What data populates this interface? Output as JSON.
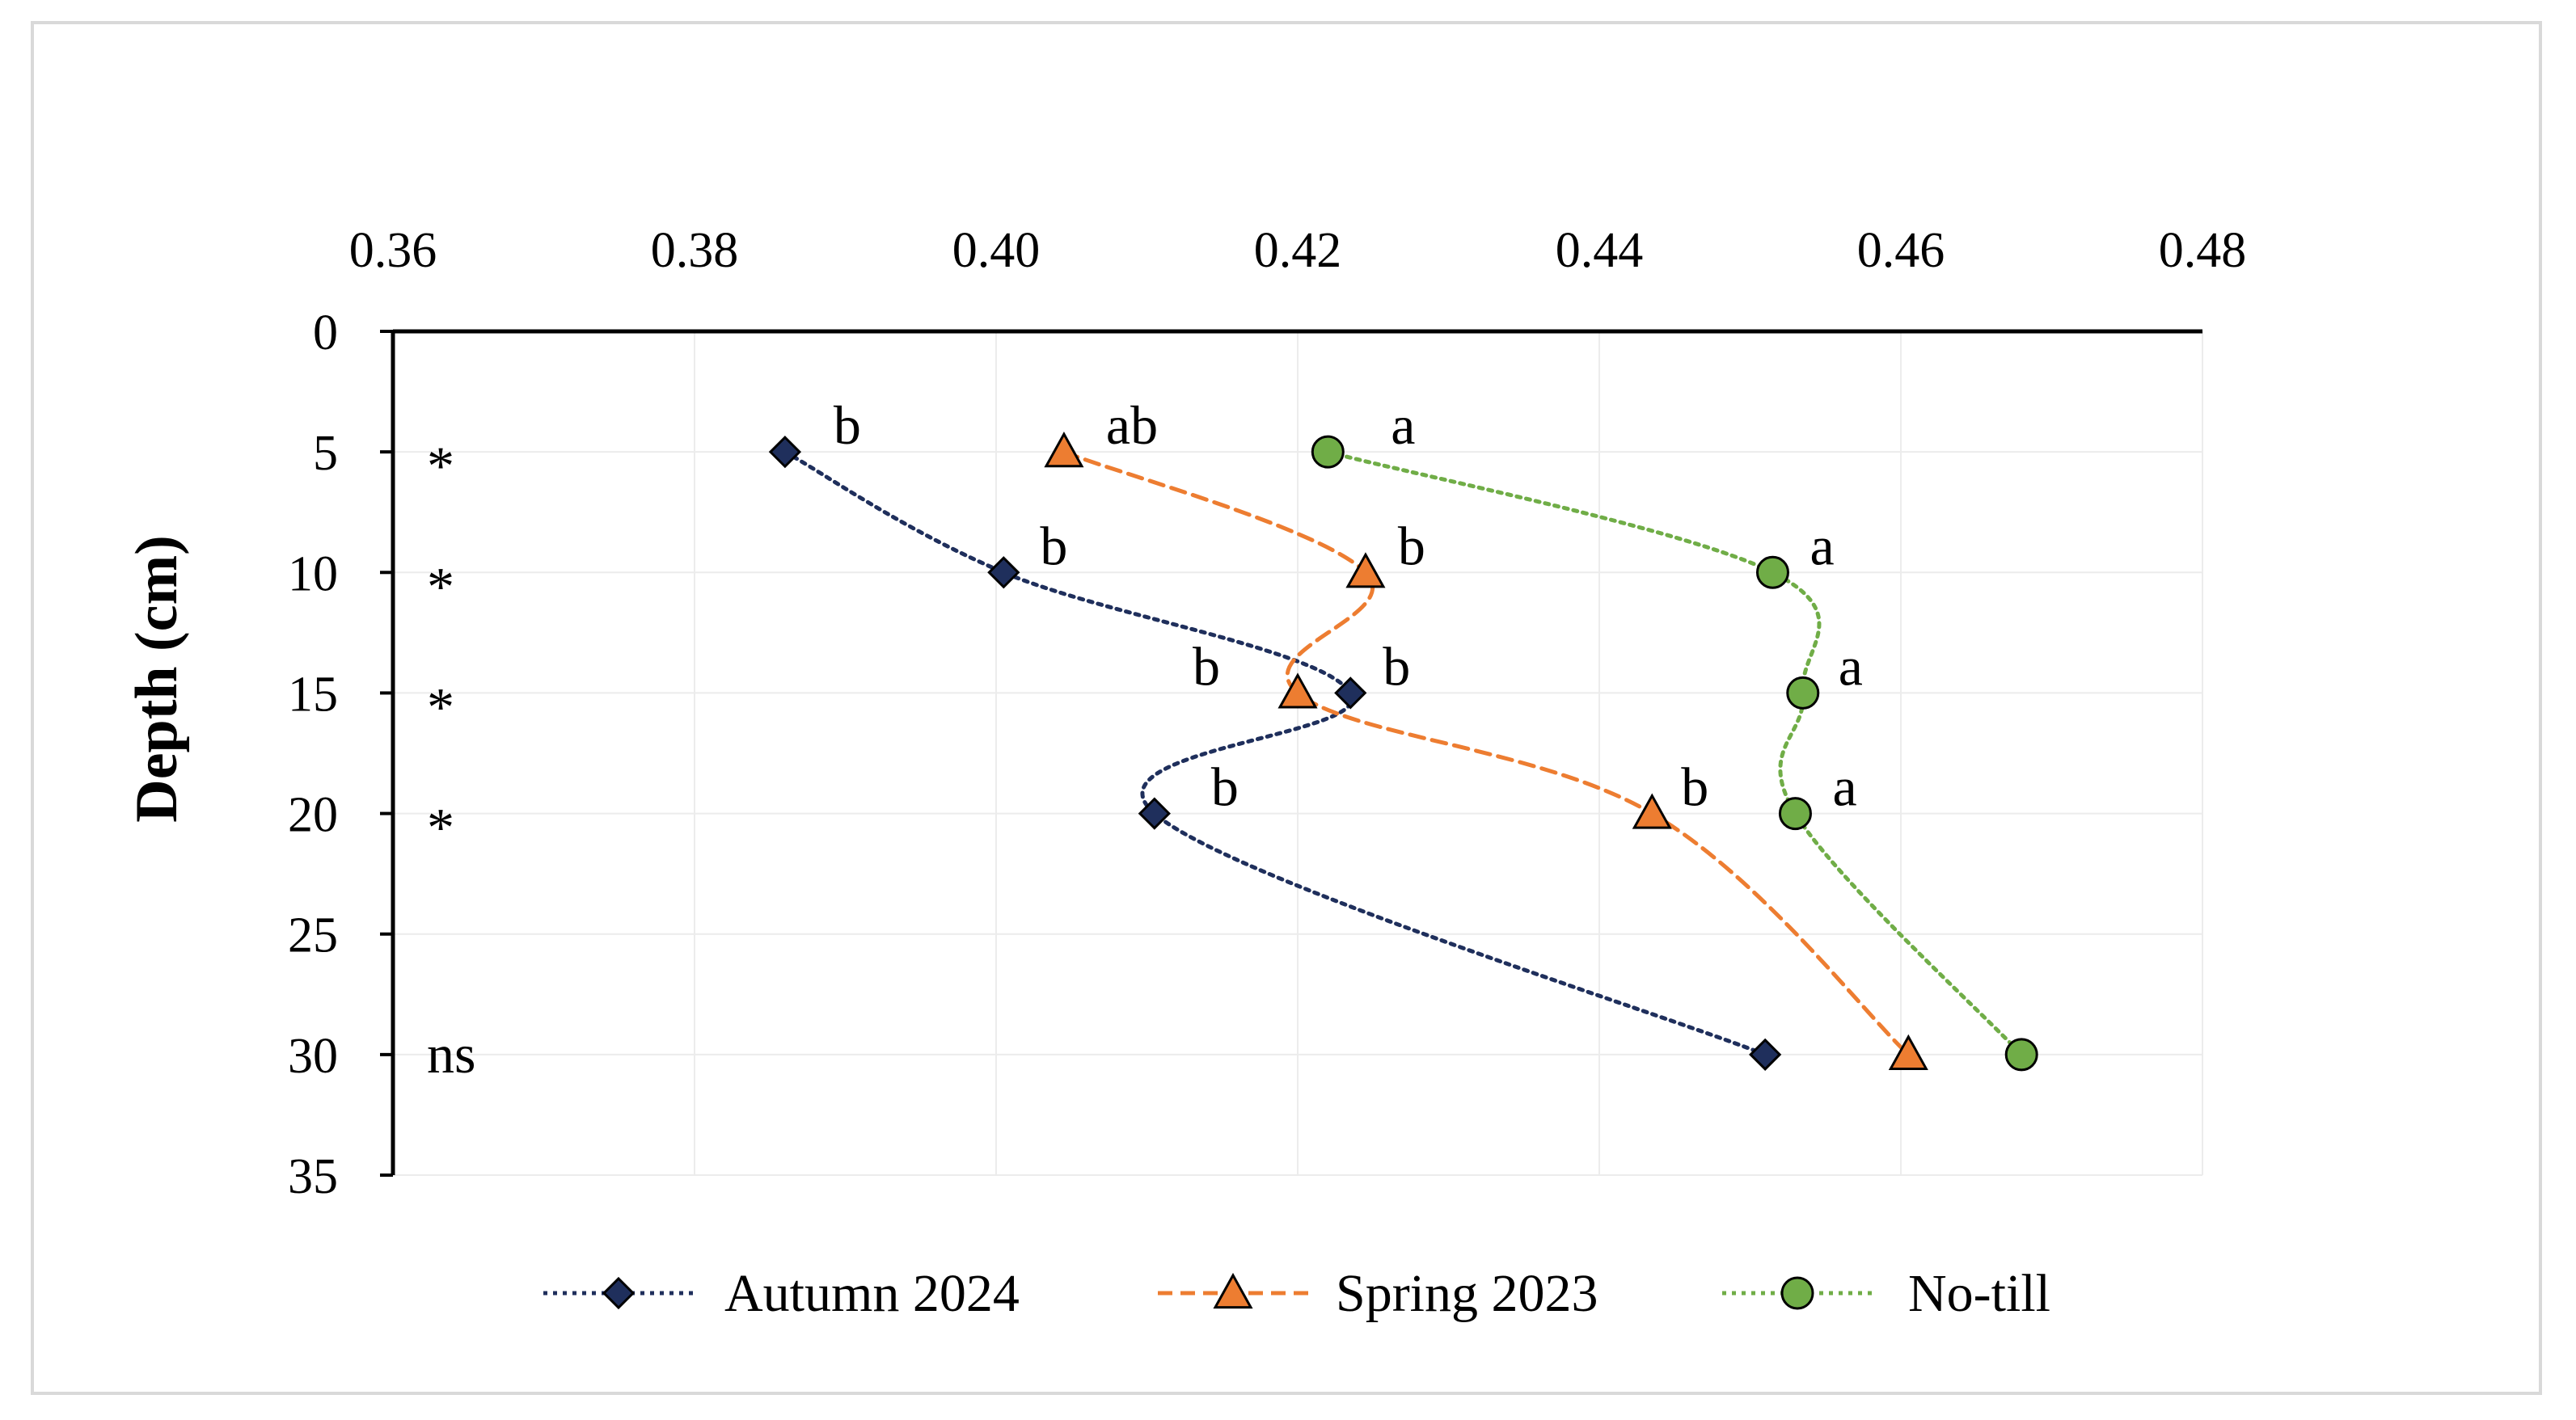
{
  "chart_data": {
    "type": "line",
    "title": "",
    "xlabel": "",
    "ylabel": "Depth (cm)",
    "x_axis_position": "top",
    "y_axis_inverted": true,
    "xlim": [
      0.36,
      0.48
    ],
    "ylim": [
      0,
      35
    ],
    "x_ticks": [
      "0.36",
      "0.38",
      "0.40",
      "0.42",
      "0.44",
      "0.46",
      "0.48"
    ],
    "y_ticks": [
      "0",
      "5",
      "10",
      "15",
      "20",
      "25",
      "30",
      "35"
    ],
    "grid": true,
    "legend_position": "bottom",
    "series": [
      {
        "name": "Autumn 2024",
        "color": "#1f2f5c",
        "marker": "diamond",
        "line_style": "dotted",
        "points": [
          {
            "x": 0.386,
            "y": 5,
            "label": "b"
          },
          {
            "x": 0.4005,
            "y": 10,
            "label": "b"
          },
          {
            "x": 0.4235,
            "y": 15,
            "label": "b"
          },
          {
            "x": 0.4105,
            "y": 20,
            "label": "b"
          },
          {
            "x": 0.451,
            "y": 30,
            "label": ""
          }
        ]
      },
      {
        "name": "Spring 2023",
        "color": "#ed7d31",
        "marker": "triangle",
        "line_style": "dashed",
        "points": [
          {
            "x": 0.4045,
            "y": 5,
            "label": "ab"
          },
          {
            "x": 0.4245,
            "y": 10,
            "label": "b"
          },
          {
            "x": 0.42,
            "y": 15,
            "label": "b"
          },
          {
            "x": 0.4435,
            "y": 20,
            "label": "b"
          },
          {
            "x": 0.4605,
            "y": 30,
            "label": ""
          }
        ]
      },
      {
        "name": "No-till",
        "color": "#70ad47",
        "marker": "circle",
        "line_style": "dotted",
        "points": [
          {
            "x": 0.422,
            "y": 5,
            "label": "a"
          },
          {
            "x": 0.4515,
            "y": 10,
            "label": "a"
          },
          {
            "x": 0.4535,
            "y": 15,
            "label": "a"
          },
          {
            "x": 0.453,
            "y": 20,
            "label": "a"
          },
          {
            "x": 0.468,
            "y": 30,
            "label": ""
          }
        ]
      }
    ],
    "significance": [
      {
        "depth": 5,
        "label": "*"
      },
      {
        "depth": 10,
        "label": "*"
      },
      {
        "depth": 15,
        "label": "*"
      },
      {
        "depth": 20,
        "label": "*"
      },
      {
        "depth": 30,
        "label": "ns"
      }
    ]
  }
}
